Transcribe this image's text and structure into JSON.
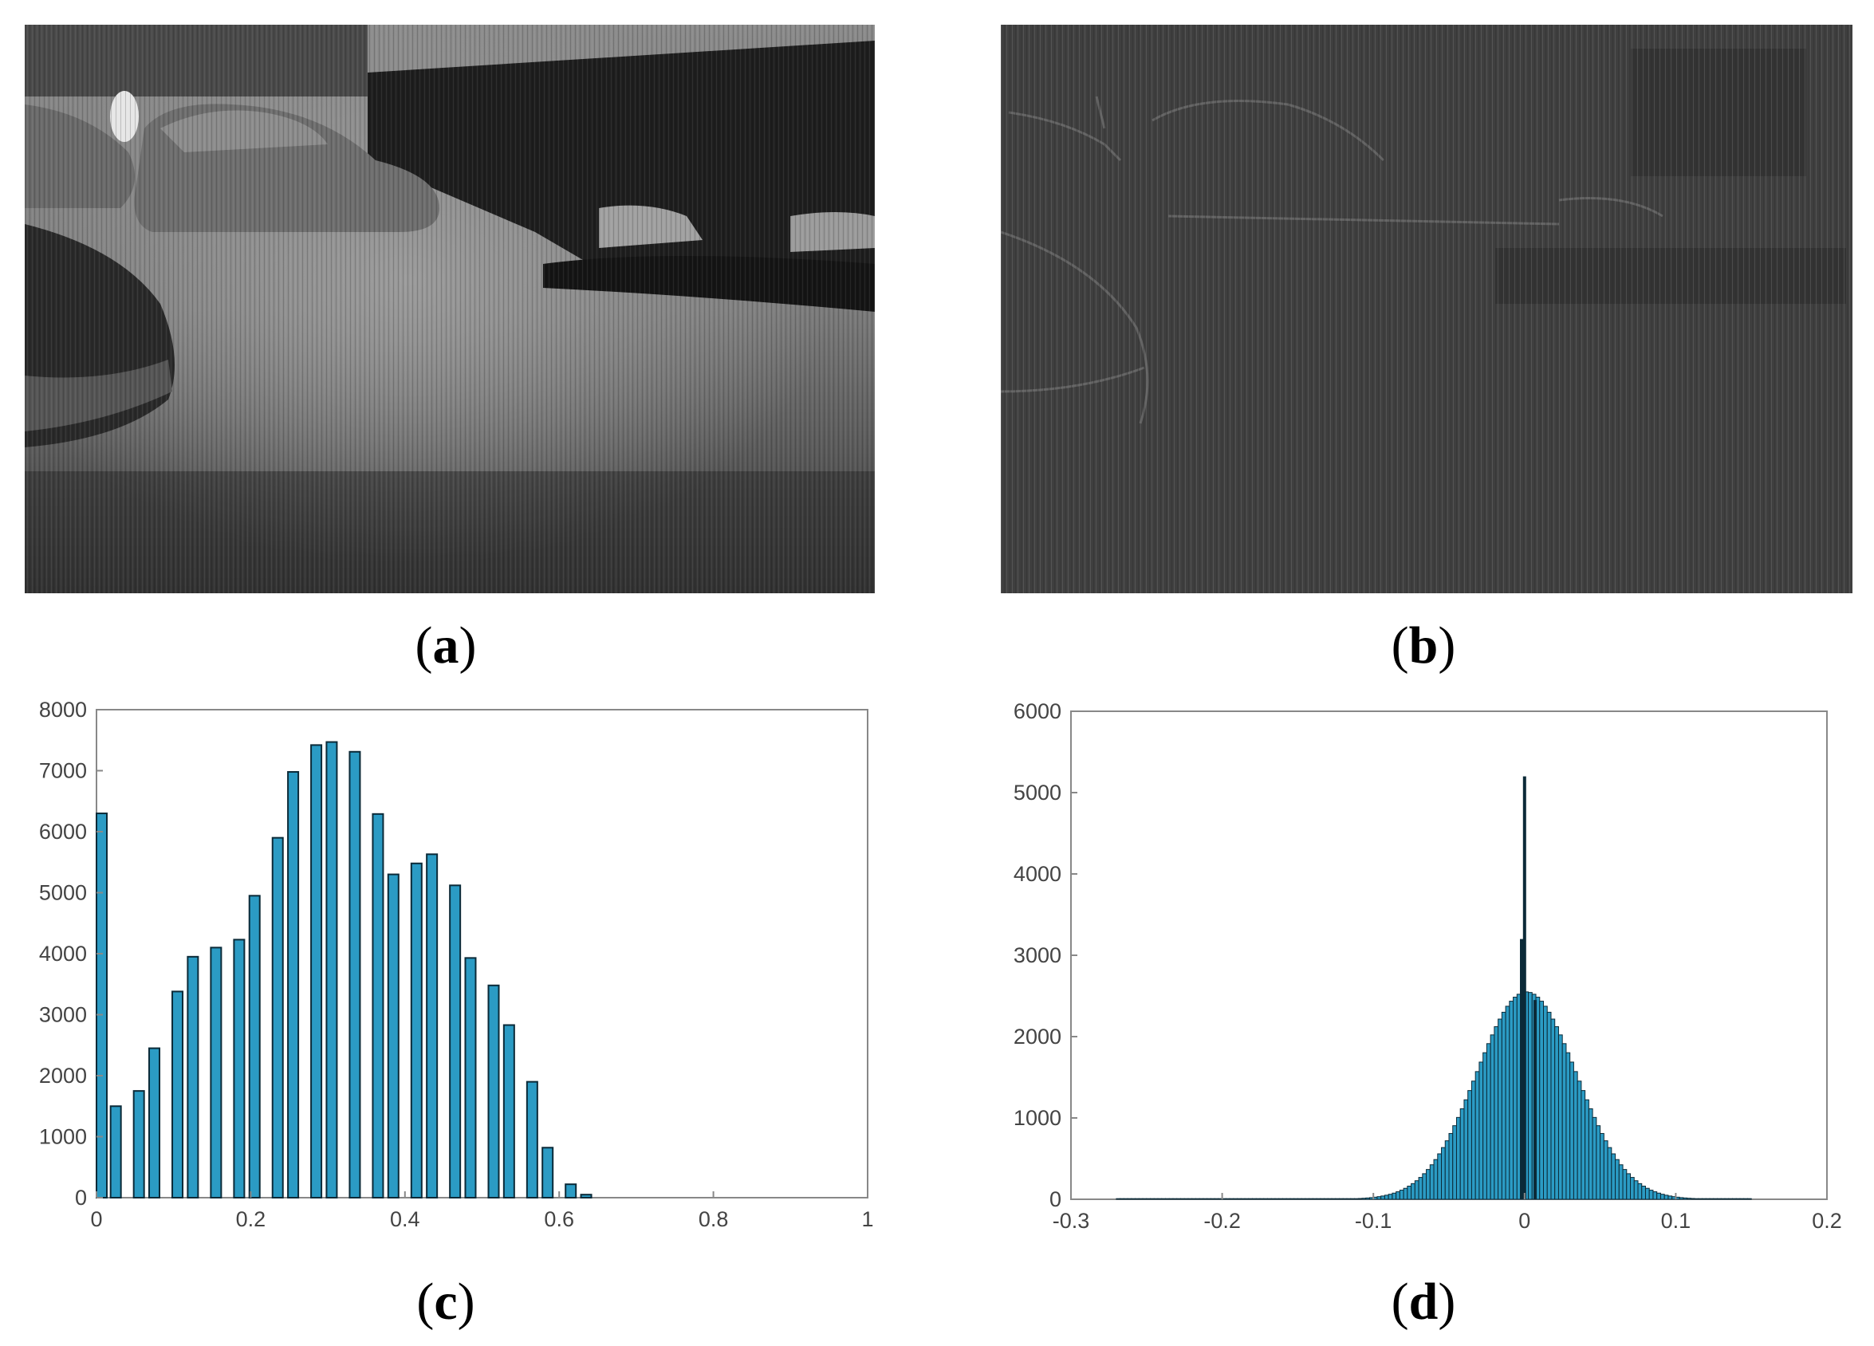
{
  "captions": {
    "a": "a",
    "b": "b",
    "c": "c",
    "d": "d"
  },
  "panels": {
    "a": {
      "description_visible": "grayscale thermal street scene with parked cars"
    },
    "b": {
      "description_visible": "dark gray stripe-noise residual image with faint car edges"
    }
  },
  "colors": {
    "bar_fill": "#2b9bc4",
    "bar_stroke": "#0b2a38",
    "axis": "#888888",
    "tick_text": "#444444"
  },
  "chart_data": [
    {
      "type": "bar",
      "title": "",
      "xlabel": "",
      "ylabel": "",
      "xlim": [
        0,
        1
      ],
      "ylim": [
        0,
        8000
      ],
      "xticks": [
        "0",
        "0.2",
        "0.4",
        "0.6",
        "0.8",
        "1"
      ],
      "yticks": [
        "0",
        "1000",
        "2000",
        "3000",
        "4000",
        "5000",
        "6000",
        "7000",
        "8000"
      ],
      "x": [
        0.0,
        0.025,
        0.055,
        0.075,
        0.105,
        0.125,
        0.155,
        0.185,
        0.205,
        0.235,
        0.255,
        0.285,
        0.305,
        0.335,
        0.365,
        0.385,
        0.415,
        0.435,
        0.465,
        0.485,
        0.515,
        0.535,
        0.565,
        0.585,
        0.615,
        0.635
      ],
      "values": [
        6300,
        1500,
        1750,
        2450,
        3380,
        3950,
        4100,
        4230,
        4950,
        5900,
        6980,
        7420,
        7470,
        7310,
        6290,
        5300,
        5480,
        5630,
        5120,
        3930,
        3480,
        2830,
        1900,
        820,
        220,
        50
      ],
      "grid": false
    },
    {
      "type": "bar",
      "title": "",
      "xlabel": "",
      "ylabel": "",
      "xlim": [
        -0.3,
        0.2
      ],
      "ylim": [
        0,
        6000
      ],
      "xticks": [
        "-0.3",
        "-0.2",
        "-0.1",
        "0",
        "0.1",
        "0.2"
      ],
      "yticks": [
        "0",
        "1000",
        "2000",
        "3000",
        "4000",
        "5000",
        "6000"
      ],
      "distribution": {
        "mean": 0.0,
        "std": 0.033,
        "peak": 2550,
        "range": [
          -0.27,
          0.15
        ]
      },
      "spikes": [
        {
          "x": 0.0,
          "value": 5200
        },
        {
          "x": -0.002,
          "value": 3200
        },
        {
          "x": 0.007,
          "value": 2450
        }
      ],
      "grid": false
    }
  ]
}
